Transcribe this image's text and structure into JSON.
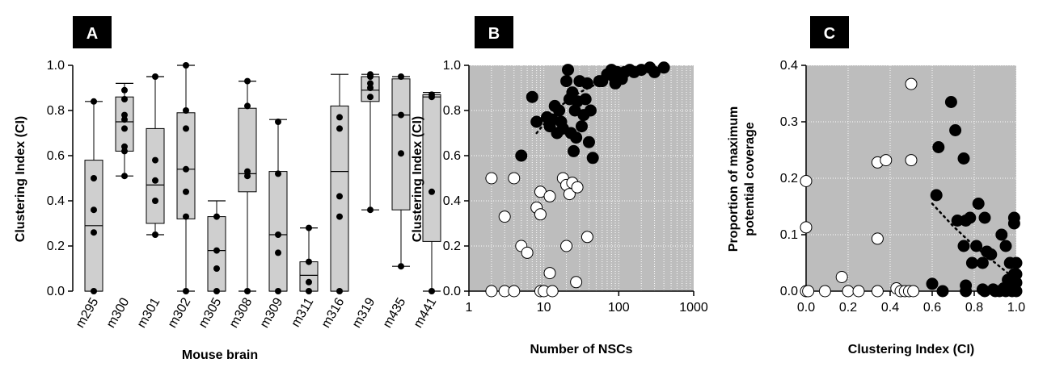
{
  "colors": {
    "plot_bg": "#bdbdbd",
    "box_fill": "#cfcfcf",
    "grid": "#ffffff",
    "marker": "#000000",
    "open_marker": "#ffffff",
    "letter_bg": "#000000"
  },
  "chart_data": [
    {
      "panel": "A",
      "type": "box",
      "xlabel": "Mouse brain",
      "ylabel": "Clustering Index (CI)",
      "ylim": [
        0,
        1
      ],
      "yticks": [
        "0.0",
        "0.2",
        "0.4",
        "0.6",
        "0.8",
        "1.0"
      ],
      "grid": false,
      "categories": [
        "m295",
        "m300",
        "m301",
        "m302",
        "m305",
        "m308",
        "m309",
        "m311",
        "m316",
        "m319",
        "m435",
        "m441"
      ],
      "boxes": [
        {
          "min": 0.0,
          "q1": 0.0,
          "median": 0.29,
          "q3": 0.58,
          "max": 0.84,
          "points": [
            0.84,
            0.5,
            0.36,
            0.26,
            0.0
          ]
        },
        {
          "min": 0.51,
          "q1": 0.62,
          "median": 0.75,
          "q3": 0.86,
          "max": 0.92,
          "points": [
            0.89,
            0.85,
            0.78,
            0.76,
            0.72,
            0.64,
            0.62,
            0.51
          ]
        },
        {
          "min": 0.25,
          "q1": 0.3,
          "median": 0.47,
          "q3": 0.72,
          "max": 0.95,
          "points": [
            0.95,
            0.58,
            0.49,
            0.4,
            0.25
          ]
        },
        {
          "min": 0.0,
          "q1": 0.32,
          "median": 0.54,
          "q3": 0.79,
          "max": 1.0,
          "points": [
            1.0,
            0.8,
            0.72,
            0.54,
            0.44,
            0.33,
            0.0
          ]
        },
        {
          "min": 0.0,
          "q1": 0.0,
          "median": 0.18,
          "q3": 0.33,
          "max": 0.4,
          "points": [
            0.33,
            0.18,
            0.1,
            0.0
          ]
        },
        {
          "min": 0.0,
          "q1": 0.44,
          "median": 0.52,
          "q3": 0.81,
          "max": 0.93,
          "points": [
            0.93,
            0.82,
            0.53,
            0.51,
            0.0
          ]
        },
        {
          "min": 0.0,
          "q1": 0.0,
          "median": 0.25,
          "q3": 0.53,
          "max": 0.76,
          "points": [
            0.75,
            0.52,
            0.25,
            0.17,
            0.0
          ]
        },
        {
          "min": 0.0,
          "q1": 0.0,
          "median": 0.07,
          "q3": 0.13,
          "max": 0.28,
          "points": [
            0.28,
            0.13,
            0.04,
            0.0
          ]
        },
        {
          "min": 0.0,
          "q1": 0.0,
          "median": 0.53,
          "q3": 0.82,
          "max": 0.96,
          "points": [
            0.77,
            0.72,
            0.42,
            0.33,
            0.0
          ]
        },
        {
          "min": 0.36,
          "q1": 0.84,
          "median": 0.89,
          "q3": 0.95,
          "max": 0.96,
          "points": [
            0.96,
            0.95,
            0.92,
            0.9,
            0.86,
            0.36
          ]
        },
        {
          "min": 0.11,
          "q1": 0.36,
          "median": 0.78,
          "q3": 0.94,
          "max": 0.95,
          "points": [
            0.95,
            0.78,
            0.61,
            0.11
          ]
        },
        {
          "min": 0.0,
          "q1": 0.22,
          "median": 0.86,
          "q3": 0.87,
          "max": 0.88,
          "points": [
            0.87,
            0.86,
            0.44,
            0.0
          ]
        }
      ]
    },
    {
      "panel": "B",
      "type": "scatter",
      "xlabel": "Number of NSCs",
      "ylabel": "Clustering Index (CI)",
      "xscale": "log",
      "xlim": [
        1,
        1000
      ],
      "ylim": [
        0,
        1
      ],
      "xticks": [
        "1",
        "10",
        "100",
        "1000"
      ],
      "yticks": [
        "0.0",
        "0.2",
        "0.4",
        "0.6",
        "0.8",
        "1.0"
      ],
      "grid": true,
      "filled": [
        [
          5,
          0.6
        ],
        [
          7,
          0.86
        ],
        [
          8,
          0.75
        ],
        [
          11,
          0.77
        ],
        [
          12,
          0.73
        ],
        [
          13,
          0.76
        ],
        [
          14,
          0.82
        ],
        [
          15,
          0.7
        ],
        [
          16,
          0.8
        ],
        [
          17,
          0.75
        ],
        [
          18,
          0.72
        ],
        [
          20,
          0.93
        ],
        [
          21,
          0.98
        ],
        [
          22,
          0.85
        ],
        [
          23,
          0.7
        ],
        [
          24,
          0.88
        ],
        [
          25,
          0.62
        ],
        [
          26,
          0.8
        ],
        [
          27,
          0.68
        ],
        [
          28,
          0.84
        ],
        [
          30,
          0.93
        ],
        [
          32,
          0.73
        ],
        [
          34,
          0.78
        ],
        [
          36,
          0.85
        ],
        [
          38,
          0.92
        ],
        [
          40,
          0.66
        ],
        [
          42,
          0.8
        ],
        [
          45,
          0.59
        ],
        [
          55,
          0.93
        ],
        [
          60,
          0.93
        ],
        [
          70,
          0.96
        ],
        [
          80,
          0.98
        ],
        [
          85,
          0.95
        ],
        [
          90,
          0.92
        ],
        [
          95,
          0.97
        ],
        [
          100,
          0.96
        ],
        [
          110,
          0.94
        ],
        [
          120,
          0.97
        ],
        [
          140,
          0.98
        ],
        [
          160,
          0.97
        ],
        [
          200,
          0.98
        ],
        [
          260,
          0.99
        ],
        [
          300,
          0.97
        ],
        [
          400,
          0.99
        ]
      ],
      "open": [
        [
          2,
          0.5
        ],
        [
          2,
          0.0
        ],
        [
          3,
          0.0
        ],
        [
          3,
          0.33
        ],
        [
          4,
          0.5
        ],
        [
          4,
          0.0
        ],
        [
          5,
          0.2
        ],
        [
          6,
          0.17
        ],
        [
          8,
          0.37
        ],
        [
          9,
          0.44
        ],
        [
          9,
          0.34
        ],
        [
          9,
          0.0
        ],
        [
          10,
          0.0
        ],
        [
          12,
          0.42
        ],
        [
          12,
          0.08
        ],
        [
          13,
          0.0
        ],
        [
          18,
          0.5
        ],
        [
          20,
          0.47
        ],
        [
          20,
          0.2
        ],
        [
          22,
          0.43
        ],
        [
          24,
          0.48
        ],
        [
          27,
          0.04
        ],
        [
          28,
          0.46
        ],
        [
          38,
          0.24
        ]
      ],
      "trend": [
        [
          8,
          0.7
        ],
        [
          15,
          0.81
        ],
        [
          30,
          0.88
        ],
        [
          60,
          0.93
        ],
        [
          120,
          0.96
        ],
        [
          250,
          0.98
        ],
        [
          400,
          0.99
        ]
      ]
    },
    {
      "panel": "C",
      "type": "scatter",
      "xlabel": "Clustering Index (CI)",
      "ylabel_lines": [
        "Proportion of maximum",
        "potential coverage"
      ],
      "xlim": [
        0,
        1
      ],
      "ylim": [
        0,
        0.4
      ],
      "xticks": [
        "0.0",
        "0.2",
        "0.4",
        "0.6",
        "0.8",
        "1.0"
      ],
      "yticks": [
        "0.0",
        "0.1",
        "0.2",
        "0.3",
        "0.4"
      ],
      "grid": true,
      "open": [
        [
          0.5,
          0.367
        ],
        [
          0.0,
          0.195
        ],
        [
          0.0,
          0.113
        ],
        [
          0.34,
          0.228
        ],
        [
          0.38,
          0.232
        ],
        [
          0.5,
          0.232
        ],
        [
          0.34,
          0.093
        ],
        [
          0.17,
          0.025
        ],
        [
          0.0,
          0.0
        ],
        [
          0.01,
          0.0
        ],
        [
          0.09,
          0.0
        ],
        [
          0.2,
          0.0
        ],
        [
          0.25,
          0.0
        ],
        [
          0.34,
          0.0
        ],
        [
          0.43,
          0.005
        ],
        [
          0.45,
          0.0
        ],
        [
          0.47,
          0.0
        ],
        [
          0.49,
          0.0
        ],
        [
          0.51,
          0.0
        ]
      ],
      "filled": [
        [
          0.69,
          0.335
        ],
        [
          0.71,
          0.285
        ],
        [
          0.75,
          0.235
        ],
        [
          0.63,
          0.255
        ],
        [
          0.62,
          0.17
        ],
        [
          0.72,
          0.125
        ],
        [
          0.76,
          0.125
        ],
        [
          0.78,
          0.13
        ],
        [
          0.82,
          0.155
        ],
        [
          0.85,
          0.13
        ],
        [
          0.75,
          0.08
        ],
        [
          0.81,
          0.08
        ],
        [
          0.79,
          0.05
        ],
        [
          0.84,
          0.05
        ],
        [
          0.86,
          0.07
        ],
        [
          0.88,
          0.065
        ],
        [
          0.93,
          0.1
        ],
        [
          0.95,
          0.08
        ],
        [
          0.99,
          0.13
        ],
        [
          0.99,
          0.12
        ],
        [
          0.97,
          0.05
        ],
        [
          1.0,
          0.05
        ],
        [
          0.6,
          0.013
        ],
        [
          0.65,
          0.0
        ],
        [
          0.76,
          0.01
        ],
        [
          0.76,
          0.0
        ],
        [
          0.84,
          0.003
        ],
        [
          0.85,
          0.0
        ],
        [
          0.89,
          0.003
        ],
        [
          0.9,
          0.0
        ],
        [
          0.92,
          0.0
        ],
        [
          0.94,
          0.005
        ],
        [
          0.95,
          0.0
        ],
        [
          0.96,
          0.02
        ],
        [
          0.97,
          0.01
        ],
        [
          0.98,
          0.0
        ],
        [
          0.99,
          0.03
        ],
        [
          0.99,
          0.02
        ],
        [
          1.0,
          0.0
        ],
        [
          1.0,
          0.03
        ],
        [
          1.0,
          0.015
        ]
      ],
      "trend": [
        [
          0.6,
          0.155
        ],
        [
          0.7,
          0.115
        ],
        [
          0.8,
          0.08
        ],
        [
          0.9,
          0.05
        ],
        [
          1.0,
          0.02
        ]
      ]
    }
  ]
}
